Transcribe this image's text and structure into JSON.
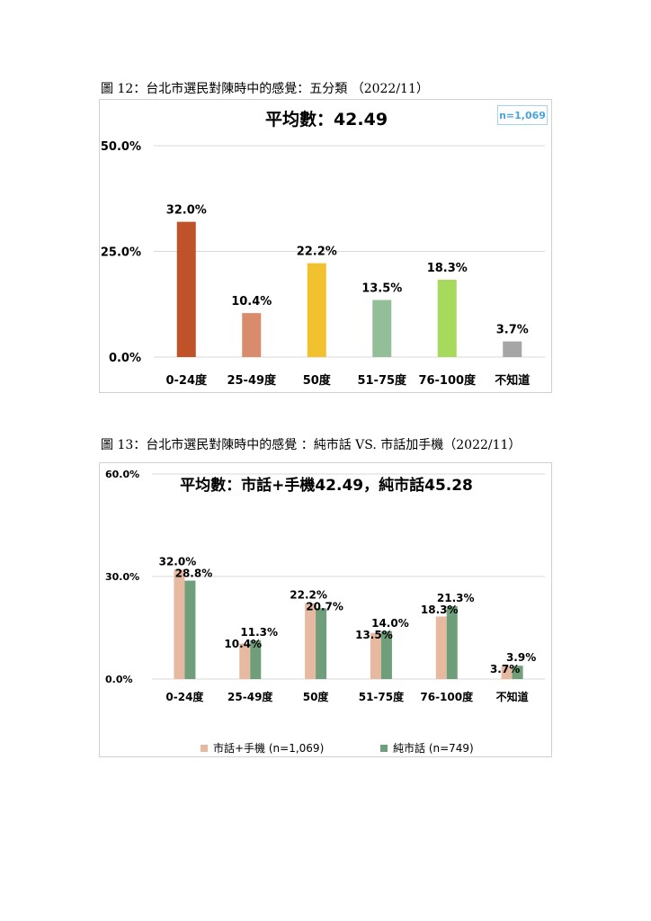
{
  "captions": {
    "fig12": "圖 12：台北市選民對陳時中的感覺：五分類 （2022/11）",
    "fig13": "圖 13：台北市選民對陳時中的感覺 ：純市話 VS. 市話加手機（2022/11）"
  },
  "chart_data": [
    {
      "type": "bar",
      "title": "平均數：42.49",
      "annotation": "n=1,069",
      "categories": [
        "0-24度",
        "25-49度",
        "50度",
        "51-75度",
        "76-100度",
        "不知道"
      ],
      "values": [
        32.0,
        10.4,
        22.2,
        13.5,
        18.3,
        3.7
      ],
      "value_labels": [
        "32.0%",
        "10.4%",
        "22.2%",
        "13.5%",
        "18.3%",
        "3.7%"
      ],
      "colors": [
        "#c0522a",
        "#d98c6c",
        "#f2c12e",
        "#93bf98",
        "#a6d95c",
        "#a6a6a6"
      ],
      "ylim": [
        0,
        50
      ],
      "yticks": [
        0,
        25,
        50
      ],
      "ytick_labels": [
        "0.0%",
        "25.0%",
        "50.0%"
      ],
      "grid": true,
      "legend": "none"
    },
    {
      "type": "bar",
      "title": "平均數：市話+手機42.49，純市話45.28",
      "categories": [
        "0-24度",
        "25-49度",
        "50度",
        "51-75度",
        "76-100度",
        "不知道"
      ],
      "series": [
        {
          "name": "市話+手機 (n=1,069)",
          "values": [
            32.0,
            10.4,
            22.2,
            13.5,
            18.3,
            3.7
          ],
          "labels": [
            "32.0%",
            "10.4%",
            "22.2%",
            "13.5%",
            "18.3%",
            "3.7%"
          ],
          "color": "#e6b9a0"
        },
        {
          "name": "純市話 (n=749)",
          "values": [
            28.8,
            11.3,
            20.7,
            14.0,
            21.3,
            3.9
          ],
          "labels": [
            "28.8%",
            "11.3%",
            "20.7%",
            "14.0%",
            "21.3%",
            "3.9%"
          ],
          "color": "#6f9e7a"
        }
      ],
      "ylim": [
        0,
        60
      ],
      "yticks": [
        0,
        30,
        60
      ],
      "ytick_labels": [
        "0.0%",
        "30.0%",
        "60.0%"
      ],
      "grid": true,
      "legend": "bottom"
    }
  ]
}
